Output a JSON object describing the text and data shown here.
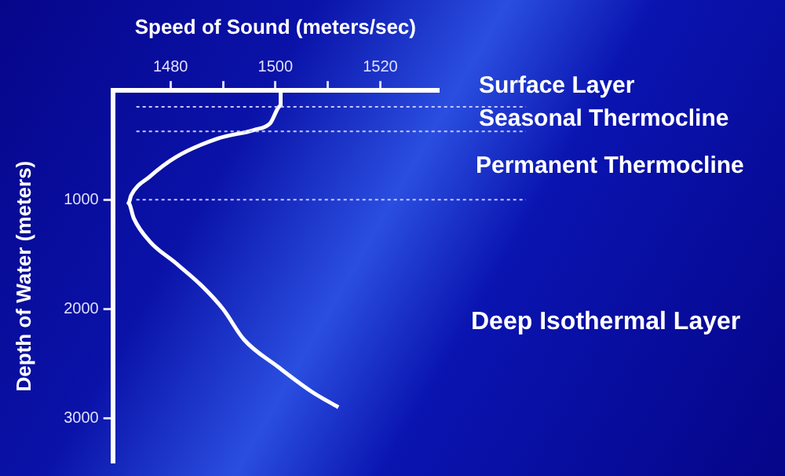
{
  "chart_data": {
    "type": "line",
    "xlabel": "Speed of Sound (meters/sec)",
    "ylabel": "Depth of Water (meters)",
    "x": [
      1501,
      1501,
      1499,
      1496,
      1489,
      1481,
      1476,
      1472.5,
      1472,
      1473,
      1476,
      1481,
      1486,
      1490,
      1494,
      1500.5,
      1507,
      1512
    ],
    "series": [
      {
        "color": "#ffffff",
        "values": [
          0,
          140,
          300,
          360,
          440,
          610,
          790,
          960,
          1030,
          1170,
          1380,
          1580,
          1790,
          2000,
          2280,
          2530,
          2760,
          2900
        ]
      }
    ],
    "xlim": [
      1469,
      1531
    ],
    "xticks": [
      1480,
      {
        "value": 1490,
        "label": null
      },
      1500,
      {
        "value": 1510,
        "label": null
      },
      1520
    ],
    "ylim": [
      3400,
      0
    ],
    "yticks": [
      1000,
      2000,
      3000
    ],
    "ref_lines": [
      {
        "axis": "y",
        "value": 150,
        "line_style": "dotted",
        "color": "#c8c8ff"
      },
      {
        "axis": "y",
        "value": 375,
        "line_style": "dotted",
        "color": "#c8c8ff"
      },
      {
        "axis": "y",
        "value": 1000,
        "line_style": "dotted",
        "color": "#c8c8ff"
      }
    ],
    "annotations": [
      "Surface Layer",
      "Seasonal Thermocline",
      "Permanent Thermocline",
      "Deep Isothermal Layer"
    ],
    "grid": false,
    "legend": false
  }
}
